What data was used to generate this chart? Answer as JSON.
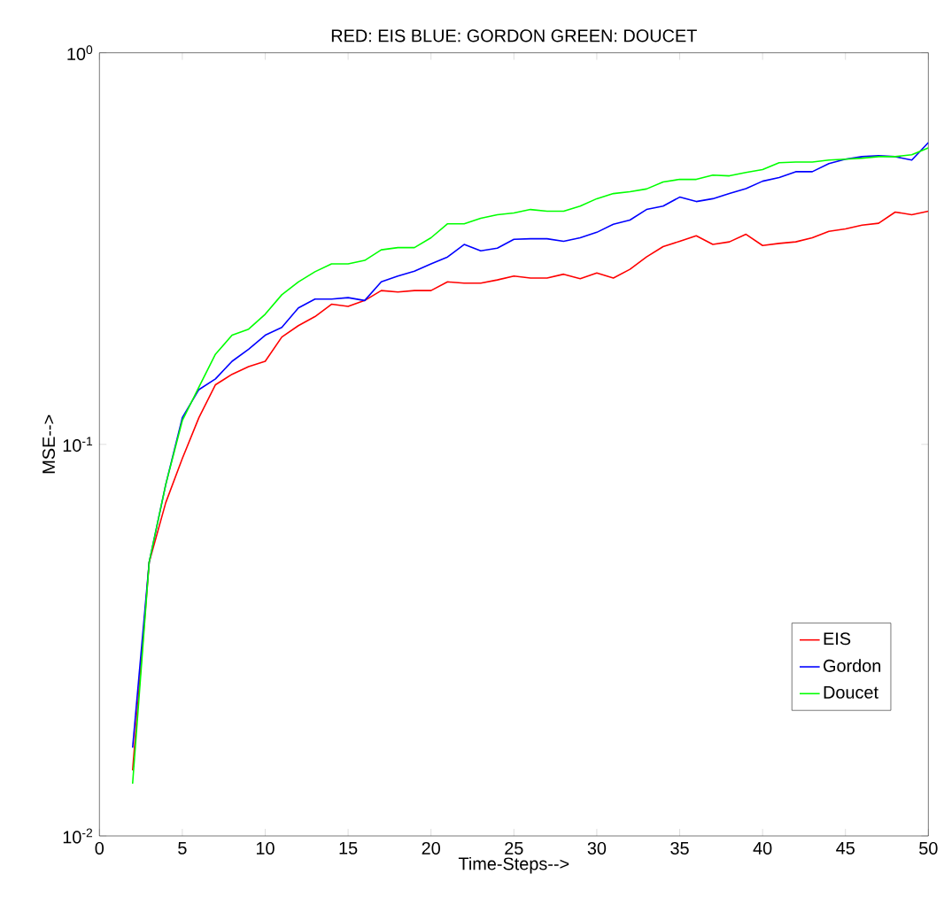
{
  "chart_data": {
    "type": "line",
    "title": "RED: EIS BLUE: GORDON GREEN: DOUCET",
    "xlabel": "Time-Steps-->",
    "ylabel": "MSE-->",
    "x": [
      2,
      3,
      4,
      5,
      6,
      7,
      8,
      9,
      10,
      11,
      12,
      13,
      14,
      15,
      16,
      17,
      18,
      19,
      20,
      21,
      22,
      23,
      24,
      25,
      26,
      27,
      28,
      29,
      30,
      31,
      32,
      33,
      34,
      35,
      36,
      37,
      38,
      39,
      40,
      41,
      42,
      43,
      44,
      45,
      46,
      47,
      48,
      49,
      50
    ],
    "series": [
      {
        "name": "EIS",
        "color": "#ff0000",
        "values": [
          0.0147,
          0.05,
          0.071,
          0.092,
          0.117,
          0.142,
          0.151,
          0.158,
          0.163,
          0.188,
          0.201,
          0.212,
          0.228,
          0.225,
          0.233,
          0.247,
          0.245,
          0.247,
          0.247,
          0.26,
          0.258,
          0.258,
          0.263,
          0.269,
          0.266,
          0.266,
          0.272,
          0.265,
          0.274,
          0.266,
          0.28,
          0.301,
          0.32,
          0.33,
          0.341,
          0.324,
          0.329,
          0.344,
          0.322,
          0.326,
          0.329,
          0.337,
          0.35,
          0.355,
          0.363,
          0.367,
          0.392,
          0.386,
          0.394
        ]
      },
      {
        "name": "Gordon",
        "color": "#0000ff",
        "values": [
          0.0168,
          0.05,
          0.079,
          0.117,
          0.138,
          0.147,
          0.163,
          0.175,
          0.19,
          0.199,
          0.223,
          0.235,
          0.235,
          0.237,
          0.233,
          0.26,
          0.269,
          0.277,
          0.289,
          0.301,
          0.324,
          0.312,
          0.317,
          0.334,
          0.335,
          0.335,
          0.33,
          0.337,
          0.348,
          0.365,
          0.374,
          0.398,
          0.406,
          0.428,
          0.417,
          0.424,
          0.437,
          0.45,
          0.47,
          0.48,
          0.497,
          0.497,
          0.521,
          0.535,
          0.543,
          0.546,
          0.543,
          0.532,
          0.59
        ]
      },
      {
        "name": "Doucet",
        "color": "#00ff00",
        "values": [
          0.0136,
          0.05,
          0.079,
          0.115,
          0.14,
          0.17,
          0.19,
          0.197,
          0.215,
          0.241,
          0.26,
          0.276,
          0.289,
          0.289,
          0.295,
          0.314,
          0.318,
          0.318,
          0.337,
          0.366,
          0.366,
          0.378,
          0.386,
          0.39,
          0.398,
          0.394,
          0.394,
          0.406,
          0.424,
          0.437,
          0.442,
          0.449,
          0.468,
          0.475,
          0.475,
          0.487,
          0.485,
          0.495,
          0.503,
          0.524,
          0.526,
          0.526,
          0.532,
          0.535,
          0.538,
          0.543,
          0.543,
          0.549,
          0.572
        ]
      }
    ],
    "xlim": [
      0,
      50
    ],
    "ylim": [
      0.01,
      1
    ],
    "log": "y",
    "xticks": [
      0,
      5,
      10,
      15,
      20,
      25,
      30,
      35,
      40,
      45,
      50
    ],
    "yticks": [
      {
        "value": 0.01,
        "label": "10$^{-2}$"
      },
      {
        "value": 0.1,
        "label": "10$^{-1}$"
      },
      {
        "value": 1,
        "label": "10$^{0}$"
      }
    ],
    "legend": "bottom right",
    "grid": false,
    "marker": "none",
    "line_style": "solid"
  }
}
